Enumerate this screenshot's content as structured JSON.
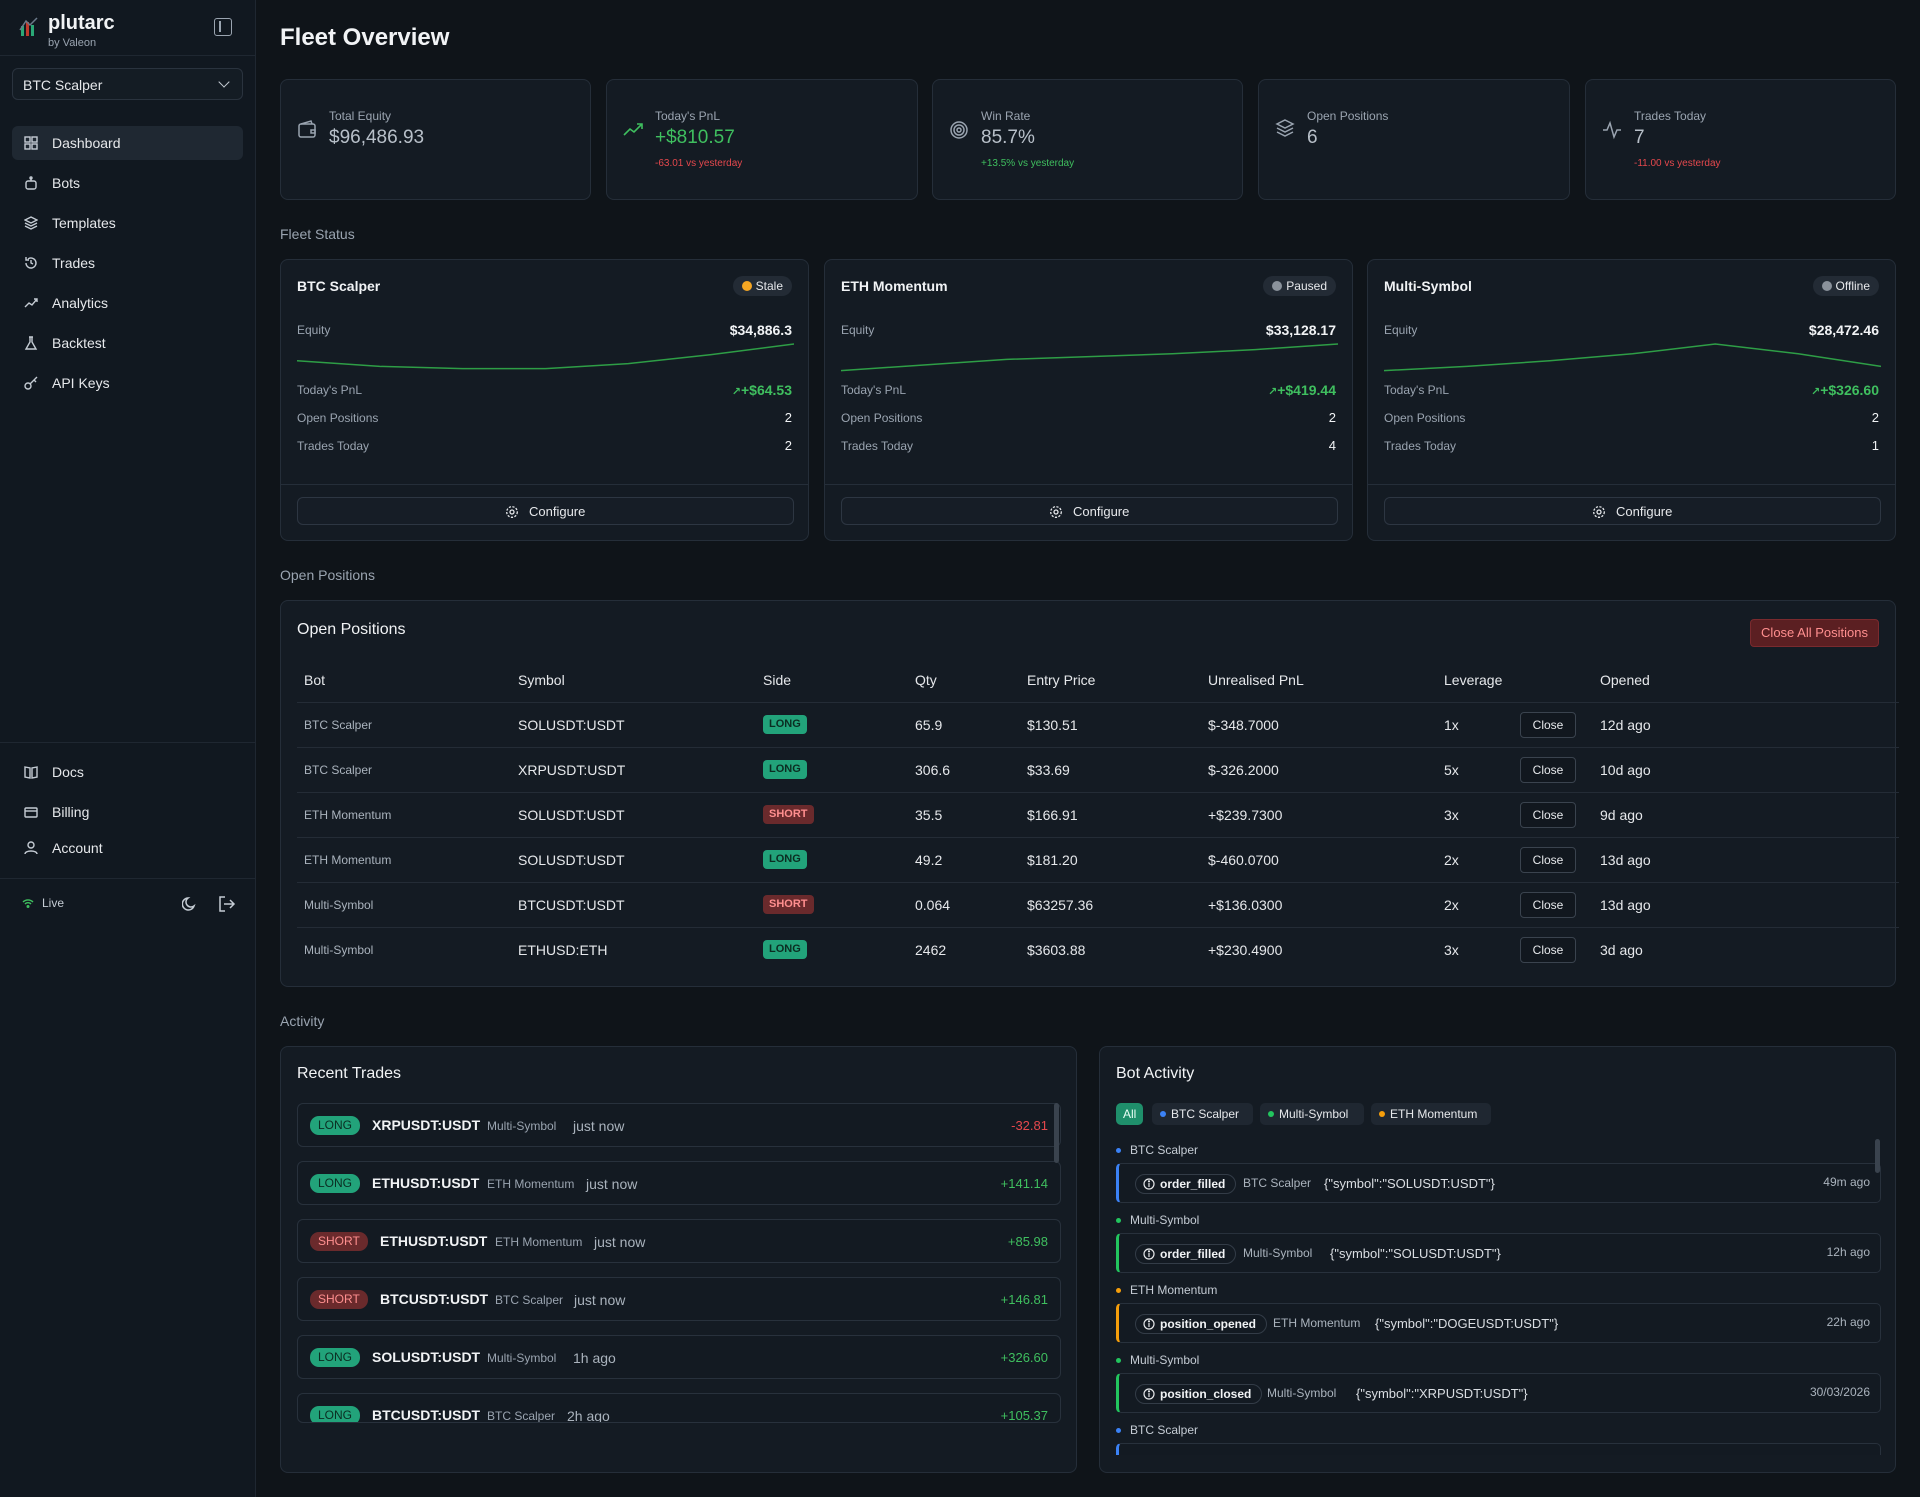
{
  "brand": {
    "name": "plutarc",
    "by": "by Valeon"
  },
  "sidebar": {
    "bot_select": "BTC Scalper",
    "nav": [
      {
        "label": "Dashboard",
        "icon": "dashboard-icon",
        "active": true
      },
      {
        "label": "Bots",
        "icon": "bot-icon"
      },
      {
        "label": "Templates",
        "icon": "layers-icon"
      },
      {
        "label": "Trades",
        "icon": "history-icon"
      },
      {
        "label": "Analytics",
        "icon": "trend-icon"
      },
      {
        "label": "Backtest",
        "icon": "flask-icon"
      },
      {
        "label": "API Keys",
        "icon": "key-icon"
      }
    ],
    "footer_nav": [
      {
        "label": "Docs",
        "icon": "book-icon"
      },
      {
        "label": "Billing",
        "icon": "card-icon"
      },
      {
        "label": "Account",
        "icon": "user-icon"
      }
    ],
    "status": "Live"
  },
  "page": {
    "title": "Fleet Overview"
  },
  "stats": [
    {
      "label": "Total Equity",
      "value": "$96,486.93",
      "sub": "",
      "icon": "wallet-icon"
    },
    {
      "label": "Today's PnL",
      "value": "+$810.57",
      "sub": "-63.01 vs yesterday",
      "icon": "trending-up-icon"
    },
    {
      "label": "Win Rate",
      "value": "85.7%",
      "sub": "+13.5% vs yesterday",
      "icon": "target-icon"
    },
    {
      "label": "Open Positions",
      "value": "6",
      "sub": "",
      "icon": "layers-icon"
    },
    {
      "label": "Trades Today",
      "value": "7",
      "sub": "-11.00 vs yesterday",
      "icon": "activity-icon"
    }
  ],
  "sections": {
    "fleet_status": "Fleet Status",
    "open_positions": "Open Positions",
    "activity": "Activity"
  },
  "fleet": [
    {
      "name": "BTC Scalper",
      "status": "Stale",
      "status_color": "#f5a623",
      "equity_label": "Equity",
      "equity": "$34,886.3",
      "pnl_label": "Today's PnL",
      "pnl": "+$64.53",
      "positions_label": "Open Positions",
      "positions": "2",
      "trades_label": "Trades Today",
      "trades": "2",
      "spark": [
        0.4,
        0.2,
        0.12,
        0.12,
        0.3,
        0.62,
        1.0
      ],
      "configure": "Configure"
    },
    {
      "name": "ETH Momentum",
      "status": "Paused",
      "status_color": "#8a929b",
      "equity_label": "Equity",
      "equity": "$33,128.17",
      "pnl_label": "Today's PnL",
      "pnl": "+$419.44",
      "positions_label": "Open Positions",
      "positions": "2",
      "trades_label": "Trades Today",
      "trades": "4",
      "spark": [
        0.05,
        0.25,
        0.45,
        0.55,
        0.65,
        0.8,
        1.0
      ],
      "configure": "Configure"
    },
    {
      "name": "Multi-Symbol",
      "status": "Offline",
      "status_color": "#8a929b",
      "equity_label": "Equity",
      "equity": "$28,472.46",
      "pnl_label": "Today's PnL",
      "pnl": "+$326.60",
      "positions_label": "Open Positions",
      "positions": "2",
      "trades_label": "Trades Today",
      "trades": "1",
      "spark": [
        0.05,
        0.2,
        0.4,
        0.65,
        1.0,
        0.65,
        0.2
      ],
      "configure": "Configure"
    }
  ],
  "positions": {
    "title": "Open Positions",
    "close_all": "Close All Positions",
    "columns": [
      "Bot",
      "Symbol",
      "Side",
      "Qty",
      "Entry Price",
      "Unrealised PnL",
      "Leverage",
      "Opened"
    ],
    "rows": [
      {
        "bot": "BTC Scalper",
        "symbol": "SOLUSDT:USDT",
        "side": "LONG",
        "qty": "65.9",
        "entry": "$130.51",
        "pnl": "$-348.7000",
        "pnl_sign": "neg",
        "lev": "1x",
        "opened": "12d ago"
      },
      {
        "bot": "BTC Scalper",
        "symbol": "XRPUSDT:USDT",
        "side": "LONG",
        "qty": "306.6",
        "entry": "$33.69",
        "pnl": "$-326.2000",
        "pnl_sign": "neg",
        "lev": "5x",
        "opened": "10d ago"
      },
      {
        "bot": "ETH Momentum",
        "symbol": "SOLUSDT:USDT",
        "side": "SHORT",
        "qty": "35.5",
        "entry": "$166.91",
        "pnl": "+$239.7300",
        "pnl_sign": "pos",
        "lev": "3x",
        "opened": "9d ago"
      },
      {
        "bot": "ETH Momentum",
        "symbol": "SOLUSDT:USDT",
        "side": "LONG",
        "qty": "49.2",
        "entry": "$181.20",
        "pnl": "$-460.0700",
        "pnl_sign": "neg",
        "lev": "2x",
        "opened": "13d ago"
      },
      {
        "bot": "Multi-Symbol",
        "symbol": "BTCUSDT:USDT",
        "side": "SHORT",
        "qty": "0.064",
        "entry": "$63257.36",
        "pnl": "+$136.0300",
        "pnl_sign": "pos",
        "lev": "2x",
        "opened": "13d ago"
      },
      {
        "bot": "Multi-Symbol",
        "symbol": "ETHUSD:ETH",
        "side": "LONG",
        "qty": "2462",
        "entry": "$3603.88",
        "pnl": "+$230.4900",
        "pnl_sign": "pos",
        "lev": "3x",
        "opened": "3d ago"
      }
    ],
    "close_label": "Close"
  },
  "recent_trades": {
    "title": "Recent Trades",
    "items": [
      {
        "side": "LONG",
        "symbol": "XRPUSDT:USDT",
        "bot": "Multi-Symbol",
        "time": "just now",
        "pnl": "-32.81",
        "pnl_sign": "neg"
      },
      {
        "side": "LONG",
        "symbol": "ETHUSDT:USDT",
        "bot": "ETH Momentum",
        "time": "just now",
        "pnl": "+141.14",
        "pnl_sign": "pos"
      },
      {
        "side": "SHORT",
        "symbol": "ETHUSDT:USDT",
        "bot": "ETH Momentum",
        "time": "just now",
        "pnl": "+85.98",
        "pnl_sign": "pos"
      },
      {
        "side": "SHORT",
        "symbol": "BTCUSDT:USDT",
        "bot": "BTC Scalper",
        "time": "just now",
        "pnl": "+146.81",
        "pnl_sign": "pos"
      },
      {
        "side": "LONG",
        "symbol": "SOLUSDT:USDT",
        "bot": "Multi-Symbol",
        "time": "1h ago",
        "pnl": "+326.60",
        "pnl_sign": "pos"
      },
      {
        "side": "LONG",
        "symbol": "BTCUSDT:USDT",
        "bot": "BTC Scalper",
        "time": "2h ago",
        "pnl": "+105.37",
        "pnl_sign": "pos"
      }
    ]
  },
  "bot_activity": {
    "title": "Bot Activity",
    "filters": [
      {
        "label": "All",
        "color": ""
      },
      {
        "label": "BTC Scalper",
        "color": "#3b82f6"
      },
      {
        "label": "Multi-Symbol",
        "color": "#22c55e"
      },
      {
        "label": "ETH Momentum",
        "color": "#f59e0b"
      }
    ],
    "events": [
      {
        "bot": "BTC Scalper",
        "color": "#3b82f6",
        "event": "order_filled",
        "payload": "{\"symbol\":\"SOLUSDT:USDT\"}",
        "time": "49m ago"
      },
      {
        "bot": "Multi-Symbol",
        "color": "#22c55e",
        "event": "order_filled",
        "payload": "{\"symbol\":\"SOLUSDT:USDT\"}",
        "time": "12h ago"
      },
      {
        "bot": "ETH Momentum",
        "color": "#f59e0b",
        "event": "position_opened",
        "payload": "{\"symbol\":\"DOGEUSDT:USDT\"}",
        "time": "22h ago"
      },
      {
        "bot": "Multi-Symbol",
        "color": "#22c55e",
        "event": "position_closed",
        "payload": "{\"symbol\":\"XRPUSDT:USDT\"}",
        "time": "30/03/2026"
      },
      {
        "bot": "BTC Scalper",
        "color": "#3b82f6",
        "event": "",
        "payload": "",
        "time": ""
      }
    ]
  },
  "colors": {
    "accent": "#22a37a",
    "positive": "#3fbf5f",
    "negative": "#e5484d",
    "bg": "#0f1419",
    "card": "#141b23"
  }
}
